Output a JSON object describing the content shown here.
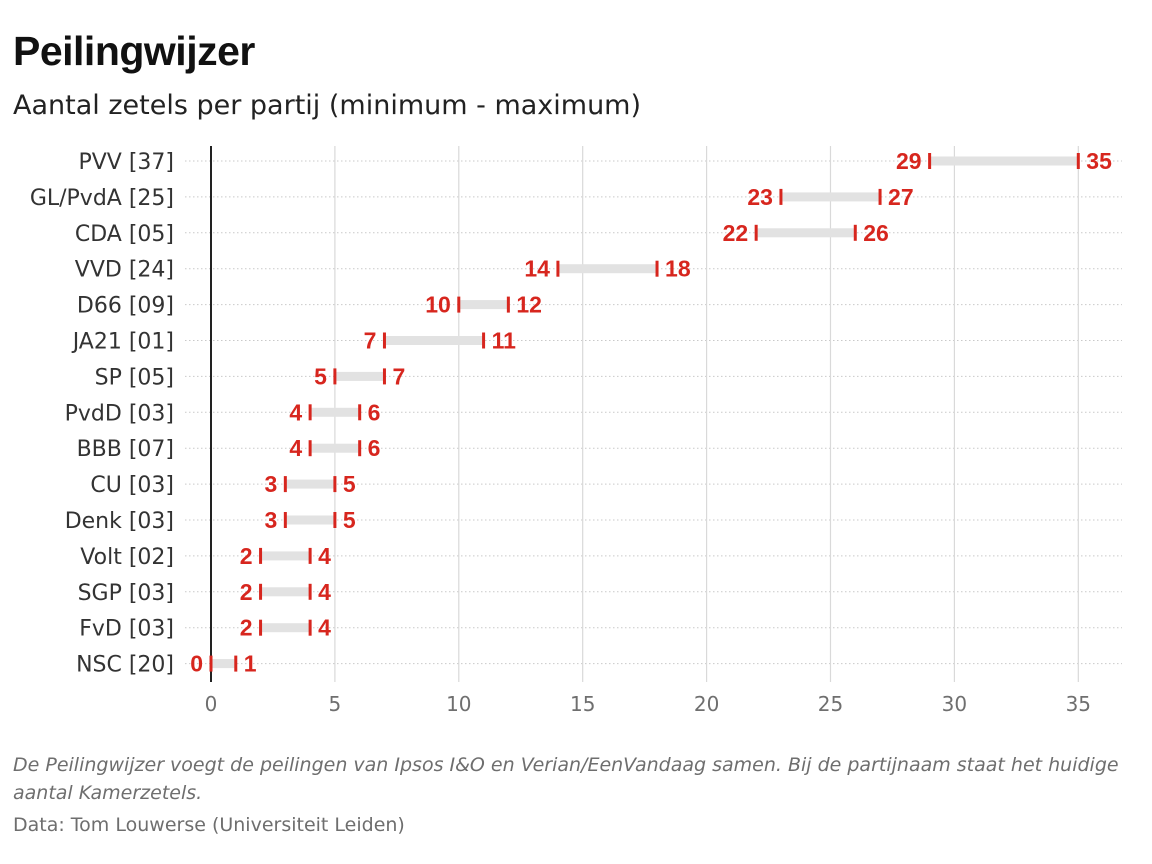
{
  "header": {
    "title": "Peilingwijzer",
    "subtitle": "Aantal zetels per partij (minimum - maximum)"
  },
  "footer": {
    "note": "De Peilingwijzer voegt de peilingen van Ipsos I&O en Verian/EenVandaag samen. Bij de partijnaam staat het huidige aantal Kamerzetels.",
    "source": "Data: Tom Louwerse (Universiteit Leiden)"
  },
  "colors": {
    "accent": "#d7261e",
    "range_bar": "#e2e2e2",
    "grid": "#d9d9d9",
    "axis": "#222222",
    "text": "#333333"
  },
  "chart_data": {
    "type": "range-bar",
    "title": "Peilingwijzer",
    "subtitle": "Aantal zetels per partij (minimum - maximum)",
    "xlim": [
      0,
      35
    ],
    "xticks": [
      0,
      5,
      10,
      15,
      20,
      25,
      30,
      35
    ],
    "grid": true,
    "orientation": "horizontal",
    "categories": [
      "PVV [37]",
      "GL/PvdA [25]",
      "CDA [05]",
      "VVD [24]",
      "D66 [09]",
      "JA21 [01]",
      "SP [05]",
      "PvdD [03]",
      "BBB [07]",
      "CU [03]",
      "Denk [03]",
      "Volt [02]",
      "SGP [03]",
      "FvD [03]",
      "NSC [20]"
    ],
    "series": [
      {
        "name": "minimum",
        "values": [
          29,
          23,
          22,
          14,
          10,
          7,
          5,
          4,
          4,
          3,
          3,
          2,
          2,
          2,
          0
        ]
      },
      {
        "name": "maximum",
        "values": [
          35,
          27,
          26,
          18,
          12,
          11,
          7,
          6,
          6,
          5,
          5,
          4,
          4,
          4,
          1
        ]
      }
    ]
  }
}
